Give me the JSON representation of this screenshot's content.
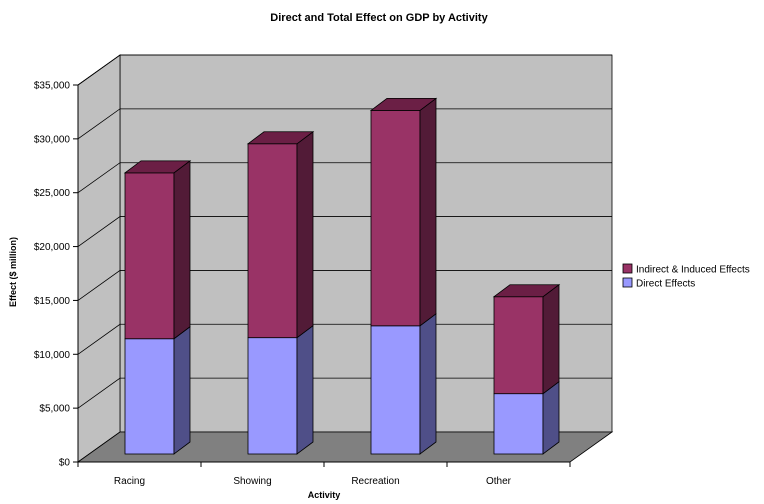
{
  "chart_data": {
    "type": "bar",
    "stacked": true,
    "three_d": true,
    "title": "Direct and Total Effect on GDP by Activity",
    "xlabel": "Activity",
    "ylabel": "Effect ($ million)",
    "categories": [
      "Racing",
      "Showing",
      "Recreation",
      "Other"
    ],
    "series": [
      {
        "name": "Direct Effects",
        "values": [
          10700,
          10800,
          11900,
          5600
        ],
        "color": "#9999ff",
        "side_color": "#4f4f88",
        "top_color": "#b8b8ff"
      },
      {
        "name": "Indirect & Induced Effects",
        "values": [
          15400,
          18000,
          20000,
          9000
        ],
        "color": "#993366",
        "side_color": "#521b37",
        "top_color": "#6b1f45"
      }
    ],
    "ylim": [
      0,
      35000
    ],
    "yticks": [
      0,
      5000,
      10000,
      15000,
      20000,
      25000,
      30000,
      35000
    ],
    "ytick_labels": [
      "$0",
      "$5,000",
      "$10,000",
      "$15,000",
      "$20,000",
      "$25,000",
      "$30,000",
      "$35,000"
    ],
    "grid": true,
    "legend_position": "right",
    "legend_order": [
      "Indirect & Induced Effects",
      "Direct Effects"
    ],
    "wall_color": "#c0c0c0",
    "floor_color": "#808080"
  }
}
